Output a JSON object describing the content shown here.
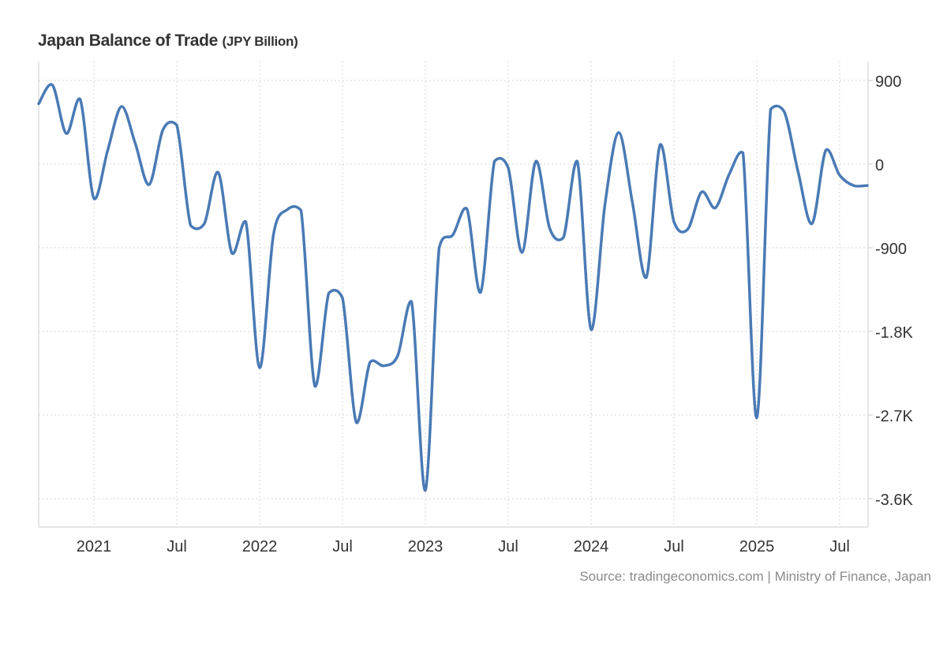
{
  "chart_data": {
    "type": "line",
    "title": "Japan Balance of Trade",
    "unit": "(JPY Billion)",
    "source": "Source: tradingeconomics.com | Ministry of Finance, Japan",
    "line_color": "#4a7ab5",
    "grid": true,
    "ylim": [
      -4000,
      1100
    ],
    "y_ticks": [
      900,
      0,
      -900,
      -1800,
      -2700,
      -3600
    ],
    "y_tick_labels": [
      "900",
      "0",
      "-900",
      "-1.8K",
      "-2.7K",
      "-3.6K"
    ],
    "x_ticks": [
      "2021-01",
      "2021-07",
      "2022-01",
      "2022-07",
      "2023-01",
      "2023-07",
      "2024-01",
      "2024-07",
      "2025-01",
      "2025-07"
    ],
    "x_tick_labels": [
      "2021",
      "Jul",
      "2022",
      "Jul",
      "2023",
      "Jul",
      "2024",
      "Jul",
      "2025",
      "Jul"
    ],
    "x": [
      "2020-09",
      "2020-10",
      "2020-11",
      "2020-12",
      "2021-01",
      "2021-02",
      "2021-03",
      "2021-04",
      "2021-05",
      "2021-06",
      "2021-07",
      "2021-08",
      "2021-09",
      "2021-10",
      "2021-11",
      "2021-12",
      "2022-01",
      "2022-02",
      "2022-03",
      "2022-04",
      "2022-05",
      "2022-06",
      "2022-07",
      "2022-08",
      "2022-09",
      "2022-10",
      "2022-11",
      "2022-12",
      "2023-01",
      "2023-02",
      "2023-03",
      "2023-04",
      "2023-05",
      "2023-06",
      "2023-07",
      "2023-08",
      "2023-09",
      "2023-10",
      "2023-11",
      "2023-12",
      "2024-01",
      "2024-02",
      "2024-03",
      "2024-04",
      "2024-05",
      "2024-06",
      "2024-07",
      "2024-08",
      "2024-09",
      "2024-10",
      "2024-11",
      "2024-12",
      "2025-01",
      "2025-02",
      "2025-03",
      "2025-04",
      "2025-05",
      "2025-06",
      "2025-07",
      "2025-08",
      "2025-09"
    ],
    "values": [
      650,
      850,
      330,
      700,
      -370,
      150,
      620,
      220,
      -220,
      370,
      420,
      -660,
      -640,
      -90,
      -960,
      -620,
      -2190,
      -760,
      -490,
      -500,
      -2390,
      -1390,
      -1440,
      -2780,
      -2130,
      -2170,
      -2060,
      -1480,
      -3510,
      -900,
      -760,
      -480,
      -1380,
      30,
      -40,
      -950,
      30,
      -690,
      -790,
      30,
      -1780,
      -440,
      340,
      -420,
      -1220,
      210,
      -620,
      -700,
      -300,
      -470,
      -110,
      120,
      -2730,
      590,
      560,
      -90,
      -640,
      150,
      -120,
      -230,
      -230
    ]
  }
}
